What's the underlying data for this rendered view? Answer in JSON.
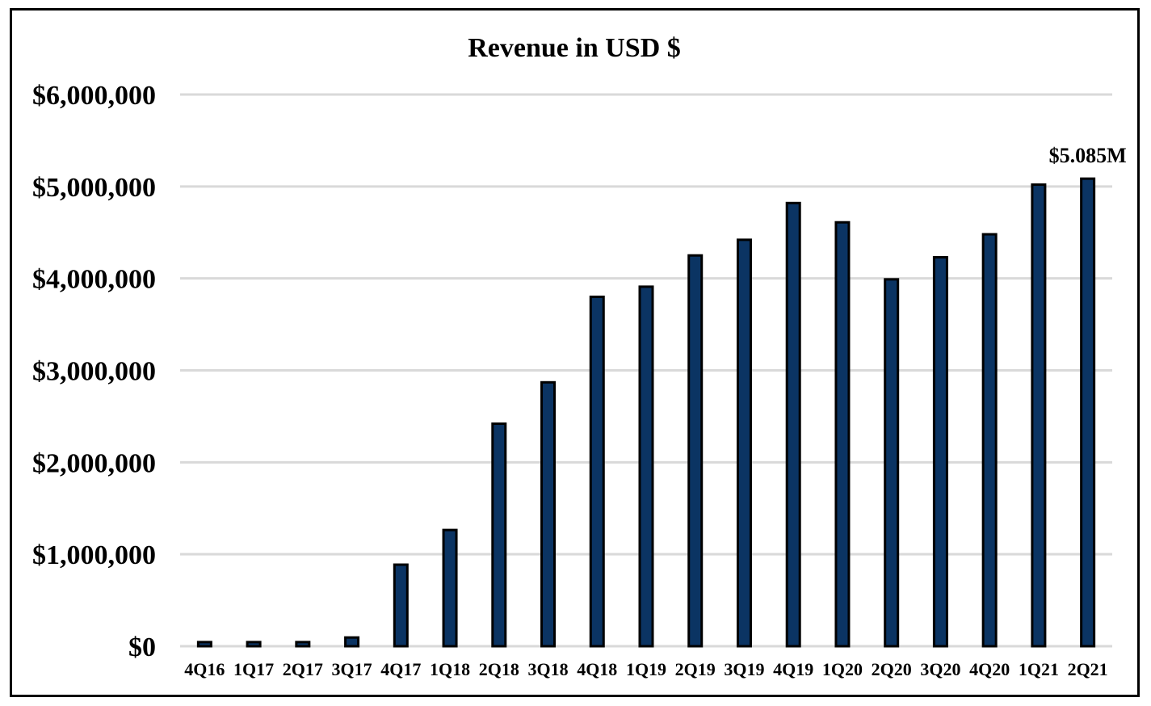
{
  "chart_data": {
    "type": "bar",
    "title": "Revenue in USD $",
    "xlabel": "",
    "ylabel": "",
    "ylim": [
      0,
      6000000
    ],
    "yticks": [
      0,
      1000000,
      2000000,
      3000000,
      4000000,
      5000000,
      6000000
    ],
    "ytick_labels": [
      "$0",
      "$1,000,000",
      "$2,000,000",
      "$3,000,000",
      "$4,000,000",
      "$5,000,000",
      "$6,000,000"
    ],
    "grid": true,
    "categories": [
      "4Q16",
      "1Q17",
      "2Q17",
      "3Q17",
      "4Q17",
      "1Q18",
      "2Q18",
      "3Q18",
      "4Q18",
      "1Q19",
      "2Q19",
      "3Q19",
      "4Q19",
      "1Q20",
      "2Q20",
      "3Q20",
      "4Q20",
      "1Q21",
      "2Q21"
    ],
    "values": [
      45000,
      45000,
      45000,
      95000,
      887000,
      1264000,
      2420000,
      2870000,
      3800000,
      3910000,
      4250000,
      4420000,
      4820000,
      4610000,
      3990000,
      4230000,
      4480000,
      5020000,
      5085000
    ],
    "data_labels": [
      {
        "category": "2Q21",
        "text": "$5.085M"
      }
    ],
    "colors": {
      "bar": "#0B3463",
      "bar_edge": "#000000",
      "grid": "#D9D9D9"
    }
  }
}
